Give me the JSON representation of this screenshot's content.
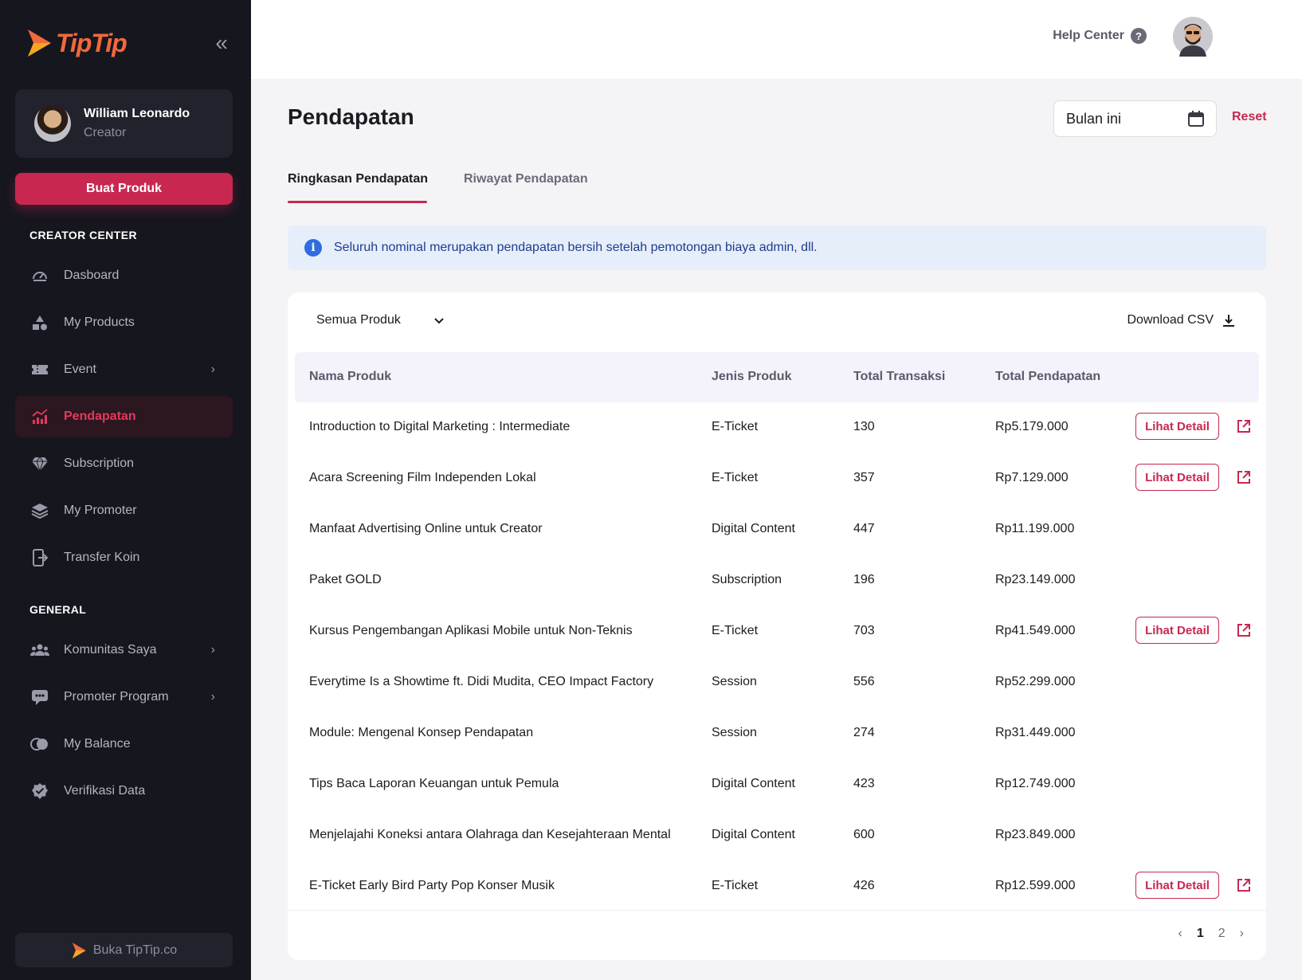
{
  "brand": {
    "name": "TipTip",
    "color": "#f2693a",
    "accent": "#c8284f"
  },
  "profile": {
    "name": "William Leonardo",
    "role": "Creator"
  },
  "sidebar": {
    "create_button": "Buat Produk",
    "creator_center_label": "CREATOR CENTER",
    "general_label": "GENERAL",
    "items": [
      {
        "label": "Dasboard",
        "icon": "gauge-icon"
      },
      {
        "label": "My Products",
        "icon": "shapes-icon"
      },
      {
        "label": "Event",
        "icon": "ticket-icon"
      },
      {
        "label": "Pendapatan",
        "icon": "chart-icon"
      },
      {
        "label": "Subscription",
        "icon": "diamond-icon"
      },
      {
        "label": "My Promoter",
        "icon": "layers-icon"
      },
      {
        "label": "Transfer Koin",
        "icon": "transfer-icon"
      }
    ],
    "general_items": [
      {
        "label": "Komunitas Saya",
        "icon": "community-icon"
      },
      {
        "label": "Promoter Program",
        "icon": "promoter-icon"
      },
      {
        "label": "My Balance",
        "icon": "balance-icon"
      },
      {
        "label": "Verifikasi Data",
        "icon": "verified-icon"
      }
    ],
    "footer_link": "Buka TipTip.co"
  },
  "header": {
    "help_label": "Help Center"
  },
  "main": {
    "title": "Pendapatan",
    "date_filter": "Bulan ini",
    "reset_label": "Reset",
    "tabs": [
      {
        "label": "Ringkasan Pendapatan"
      },
      {
        "label": "Riwayat Pendapatan"
      }
    ],
    "info": "Seluruh nominal merupakan pendapatan bersih setelah pemotongan biaya admin, dll.",
    "product_filter": "Semua Produk",
    "download_label": "Download CSV",
    "detail_label": "Lihat Detail",
    "columns": [
      "Nama Produk",
      "Jenis Produk",
      "Total Transaksi",
      "Total Pendapatan"
    ],
    "rows": [
      {
        "name": "Introduction to Digital Marketing : Intermediate",
        "type": "E-Ticket",
        "tx": "130",
        "revenue": "Rp5.179.000"
      },
      {
        "name": "Acara Screening Film Independen Lokal",
        "type": "E-Ticket",
        "tx": "357",
        "revenue": "Rp7.129.000"
      },
      {
        "name": "Manfaat Advertising Online untuk Creator",
        "type": "Digital Content",
        "tx": "447",
        "revenue": "Rp11.199.000"
      },
      {
        "name": "Paket GOLD",
        "type": "Subscription",
        "tx": "196",
        "revenue": "Rp23.149.000"
      },
      {
        "name": "Kursus Pengembangan Aplikasi Mobile untuk Non-Teknis",
        "type": "E-Ticket",
        "tx": "703",
        "revenue": "Rp41.549.000"
      },
      {
        "name": "Everytime Is a Showtime ft. Didi Mudita, CEO Impact Factory",
        "type": "Session",
        "tx": "556",
        "revenue": "Rp52.299.000"
      },
      {
        "name": "Module: Mengenal Konsep Pendapatan",
        "type": "Session",
        "tx": "274",
        "revenue": "Rp31.449.000"
      },
      {
        "name": "Tips Baca Laporan Keuangan untuk Pemula",
        "type": "Digital Content",
        "tx": "423",
        "revenue": "Rp12.749.000"
      },
      {
        "name": "Menjelajahi Koneksi antara Olahraga dan Kesejahteraan Mental",
        "type": "Digital Content",
        "tx": "600",
        "revenue": "Rp23.849.000"
      },
      {
        "name": "E-Ticket Early Bird Party Pop Konser Musik",
        "type": "E-Ticket",
        "tx": "426",
        "revenue": "Rp12.599.000"
      }
    ],
    "pagination": {
      "pages": [
        "1",
        "2"
      ],
      "current": "1"
    }
  }
}
